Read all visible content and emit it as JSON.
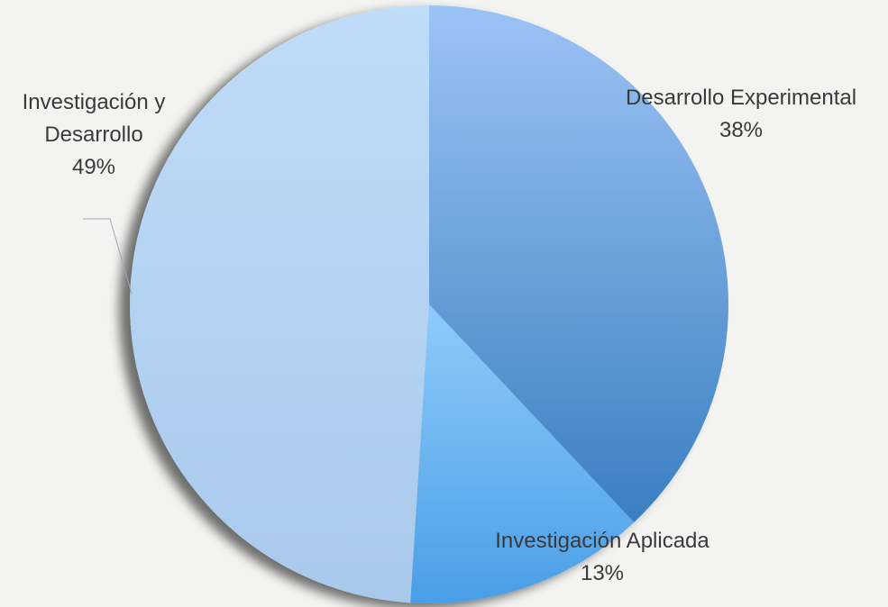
{
  "chart_data": {
    "type": "pie",
    "title": "",
    "start_angle_deg": 0,
    "direction": "clockwise",
    "legend": "none",
    "slices": [
      {
        "label_lines": [
          "Desarrollo Experimental"
        ],
        "percent_label": "38%",
        "value": 38,
        "color_top": "#9cc3f5",
        "color_bottom": "#3a7fc1"
      },
      {
        "label_lines": [
          "Investigación Aplicada"
        ],
        "percent_label": "13%",
        "value": 13,
        "color_top": "#8ecbfb",
        "color_bottom": "#4a9ee6"
      },
      {
        "label_lines": [
          "Investigación y",
          "Desarrollo"
        ],
        "percent_label": "49%",
        "value": 49,
        "color_top": "#bfdcf8",
        "color_bottom": "#a9c9ec"
      }
    ]
  },
  "colors": {
    "background": "#f3f3f1",
    "label_text": "#3a3a3a",
    "leader_line": "#9aaab8"
  }
}
